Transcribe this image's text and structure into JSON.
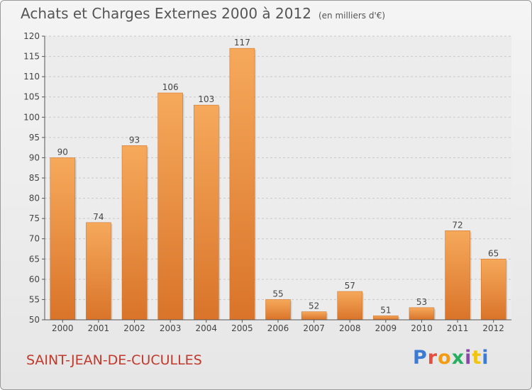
{
  "header": {
    "title": "Achats et Charges Externes 2000 à 2012",
    "unit": "(en milliers d'€)"
  },
  "footer": {
    "commune": "SAINT-JEAN-DE-CUCULLES",
    "logo": "Proxiti",
    "logo_colors": [
      "#3a7bd5",
      "#e74c3c",
      "#f39c12",
      "#27ae60",
      "#8e44ad",
      "#f1c40f",
      "#3a7bd5"
    ]
  },
  "colors": {
    "bar_top": "#f6a95b",
    "bar_bottom": "#d9742a",
    "commune": "#c0392b"
  },
  "chart_data": {
    "type": "bar",
    "title": "Achats et Charges Externes 2000 à 2012",
    "subtitle": "(en milliers d'€)",
    "categories": [
      "2000",
      "2001",
      "2002",
      "2003",
      "2004",
      "2005",
      "2006",
      "2007",
      "2008",
      "2009",
      "2010",
      "2011",
      "2012"
    ],
    "values": [
      90,
      74,
      93,
      106,
      103,
      117,
      55,
      52,
      57,
      51,
      53,
      72,
      65
    ],
    "ylim": [
      50,
      120
    ],
    "yticks": [
      50,
      55,
      60,
      65,
      70,
      75,
      80,
      85,
      90,
      95,
      100,
      105,
      110,
      115,
      120
    ],
    "grid": true,
    "data_labels": true
  }
}
